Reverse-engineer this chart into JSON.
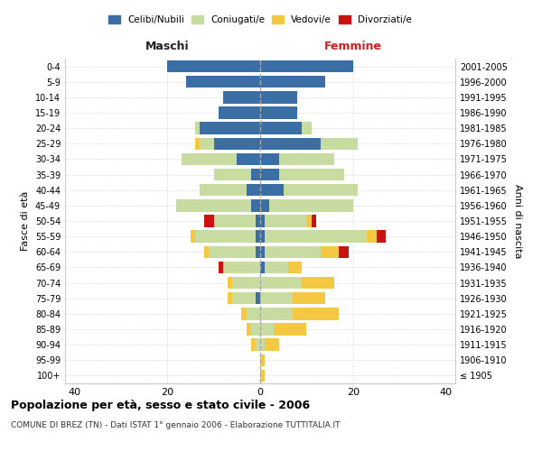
{
  "age_groups": [
    "100+",
    "95-99",
    "90-94",
    "85-89",
    "80-84",
    "75-79",
    "70-74",
    "65-69",
    "60-64",
    "55-59",
    "50-54",
    "45-49",
    "40-44",
    "35-39",
    "30-34",
    "25-29",
    "20-24",
    "15-19",
    "10-14",
    "5-9",
    "0-4"
  ],
  "birth_years": [
    "≤ 1905",
    "1906-1910",
    "1911-1915",
    "1916-1920",
    "1921-1925",
    "1926-1930",
    "1931-1935",
    "1936-1940",
    "1941-1945",
    "1946-1950",
    "1951-1955",
    "1956-1960",
    "1961-1965",
    "1966-1970",
    "1971-1975",
    "1976-1980",
    "1981-1985",
    "1986-1990",
    "1991-1995",
    "1996-2000",
    "2001-2005"
  ],
  "colors": {
    "celibi": "#3a6ea5",
    "coniugati": "#c8dba0",
    "vedovi": "#f5c842",
    "divorziati": "#cc1111"
  },
  "maschi": {
    "celibi": [
      0,
      0,
      0,
      0,
      0,
      1,
      0,
      0,
      1,
      1,
      1,
      2,
      3,
      2,
      5,
      10,
      13,
      9,
      8,
      16,
      20
    ],
    "coniugati": [
      0,
      0,
      1,
      2,
      3,
      5,
      6,
      8,
      10,
      13,
      9,
      16,
      10,
      8,
      12,
      3,
      1,
      0,
      0,
      0,
      0
    ],
    "vedovi": [
      0,
      0,
      1,
      1,
      1,
      1,
      1,
      0,
      1,
      1,
      0,
      0,
      0,
      0,
      0,
      1,
      0,
      0,
      0,
      0,
      0
    ],
    "divorziati": [
      0,
      0,
      0,
      0,
      0,
      0,
      0,
      1,
      0,
      0,
      2,
      0,
      0,
      0,
      0,
      0,
      0,
      0,
      0,
      0,
      0
    ]
  },
  "femmine": {
    "celibi": [
      0,
      0,
      0,
      0,
      0,
      0,
      0,
      1,
      1,
      1,
      1,
      2,
      5,
      4,
      4,
      13,
      9,
      8,
      8,
      14,
      20
    ],
    "coniugati": [
      0,
      0,
      1,
      3,
      7,
      7,
      9,
      5,
      12,
      22,
      9,
      18,
      16,
      14,
      12,
      8,
      2,
      0,
      0,
      0,
      0
    ],
    "vedovi": [
      1,
      1,
      3,
      7,
      10,
      7,
      7,
      3,
      4,
      2,
      1,
      0,
      0,
      0,
      0,
      0,
      0,
      0,
      0,
      0,
      0
    ],
    "divorziati": [
      0,
      0,
      0,
      0,
      0,
      0,
      0,
      0,
      2,
      2,
      1,
      0,
      0,
      0,
      0,
      0,
      0,
      0,
      0,
      0,
      0
    ]
  },
  "title": "Popolazione per età, sesso e stato civile - 2006",
  "subtitle": "COMUNE DI BREZ (TN) - Dati ISTAT 1° gennaio 2006 - Elaborazione TUTTITALIA.IT",
  "xlabel_left": "Maschi",
  "xlabel_right": "Femmine",
  "ylabel": "Fasce di età",
  "ylabel_right": "Anni di nascita",
  "xlim": 42,
  "legend_labels": [
    "Celibi/Nubili",
    "Coniugati/e",
    "Vedovi/e",
    "Divorziati/e"
  ],
  "background_color": "#ffffff",
  "grid_color": "#cccccc"
}
